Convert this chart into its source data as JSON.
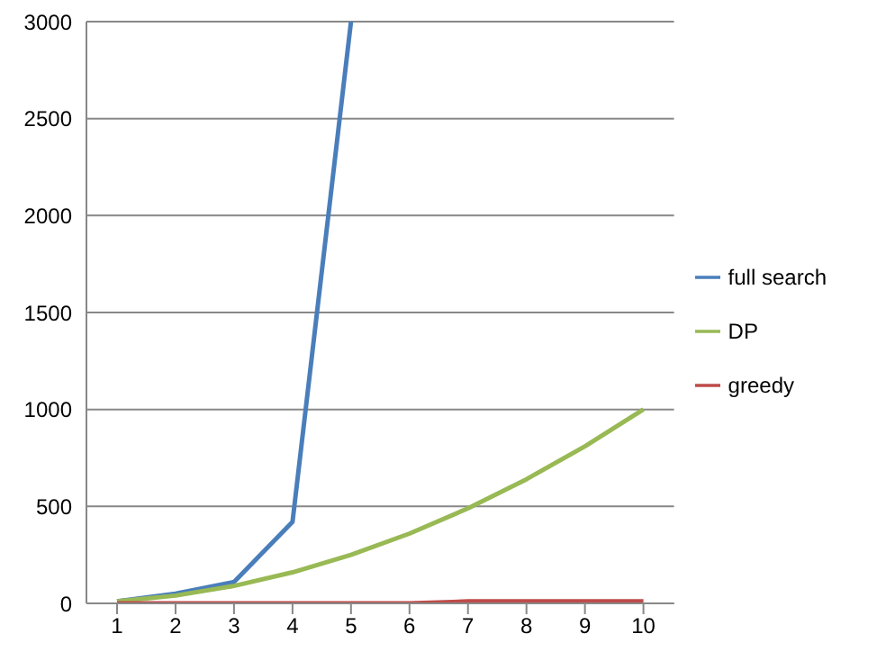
{
  "chart_data": {
    "type": "line",
    "categories": [
      "1",
      "2",
      "3",
      "4",
      "5",
      "6",
      "7",
      "8",
      "9",
      "10"
    ],
    "series": [
      {
        "name": "full search",
        "color": "#4a7ebb",
        "values": [
          10,
          50,
          110,
          420,
          3000,
          null,
          null,
          null,
          null,
          null
        ]
      },
      {
        "name": "DP",
        "color": "#98b954",
        "values": [
          10,
          40,
          90,
          160,
          250,
          360,
          490,
          640,
          810,
          1000
        ]
      },
      {
        "name": "greedy",
        "color": "#be4b48",
        "values": [
          0,
          0,
          0,
          0,
          0,
          0,
          10,
          10,
          10,
          10
        ]
      }
    ],
    "ylim": [
      0,
      3000
    ],
    "yticks": [
      0,
      500,
      1000,
      1500,
      2000,
      2500,
      3000
    ],
    "grid": "y",
    "legend": "right",
    "marker": "none",
    "line_style": "solid"
  }
}
